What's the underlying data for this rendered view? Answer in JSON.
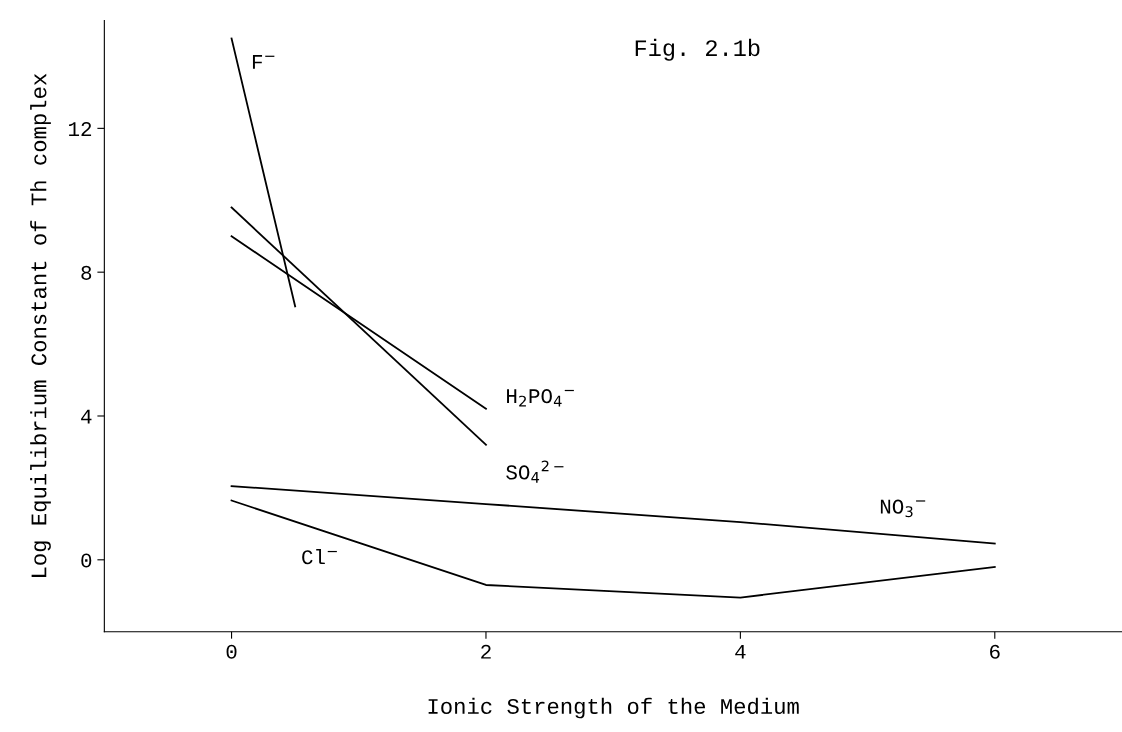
{
  "chart_data": {
    "type": "line",
    "title": "Fig. 2.1b",
    "xlabel": "Ionic Strength of the Medium",
    "ylabel": "Log Equilibrium Constant of Th complex",
    "xlim": [
      -1,
      7
    ],
    "ylim": [
      -2,
      15
    ],
    "xticks": [
      0,
      2,
      4,
      6
    ],
    "yticks": [
      0,
      4,
      8,
      12
    ],
    "grid": false,
    "legend": false,
    "marker": "none",
    "line_style": "solid",
    "series": [
      {
        "name": "F$^{−}$",
        "color": "#000000",
        "x": [
          0,
          0.5
        ],
        "values": [
          14.5,
          7.05
        ]
      },
      {
        "name": "H$_{2}$PO$_{4}$$^{−}$",
        "color": "#000000",
        "x": [
          0,
          2
        ],
        "values": [
          9.0,
          4.2
        ]
      },
      {
        "name": "SO$_{4}$$^{2−}$",
        "color": "#000000",
        "x": [
          0,
          2
        ],
        "values": [
          9.8,
          3.2
        ]
      },
      {
        "name": "NO$_{3}$$^{−}$",
        "color": "#000000",
        "x": [
          0,
          2,
          4,
          6
        ],
        "values": [
          2.05,
          1.55,
          1.05,
          0.45
        ]
      },
      {
        "name": "Cl$^{−}$",
        "color": "#000000",
        "x": [
          0,
          2,
          4,
          6
        ],
        "values": [
          1.65,
          -0.7,
          -1.05,
          -0.2
        ]
      }
    ]
  }
}
